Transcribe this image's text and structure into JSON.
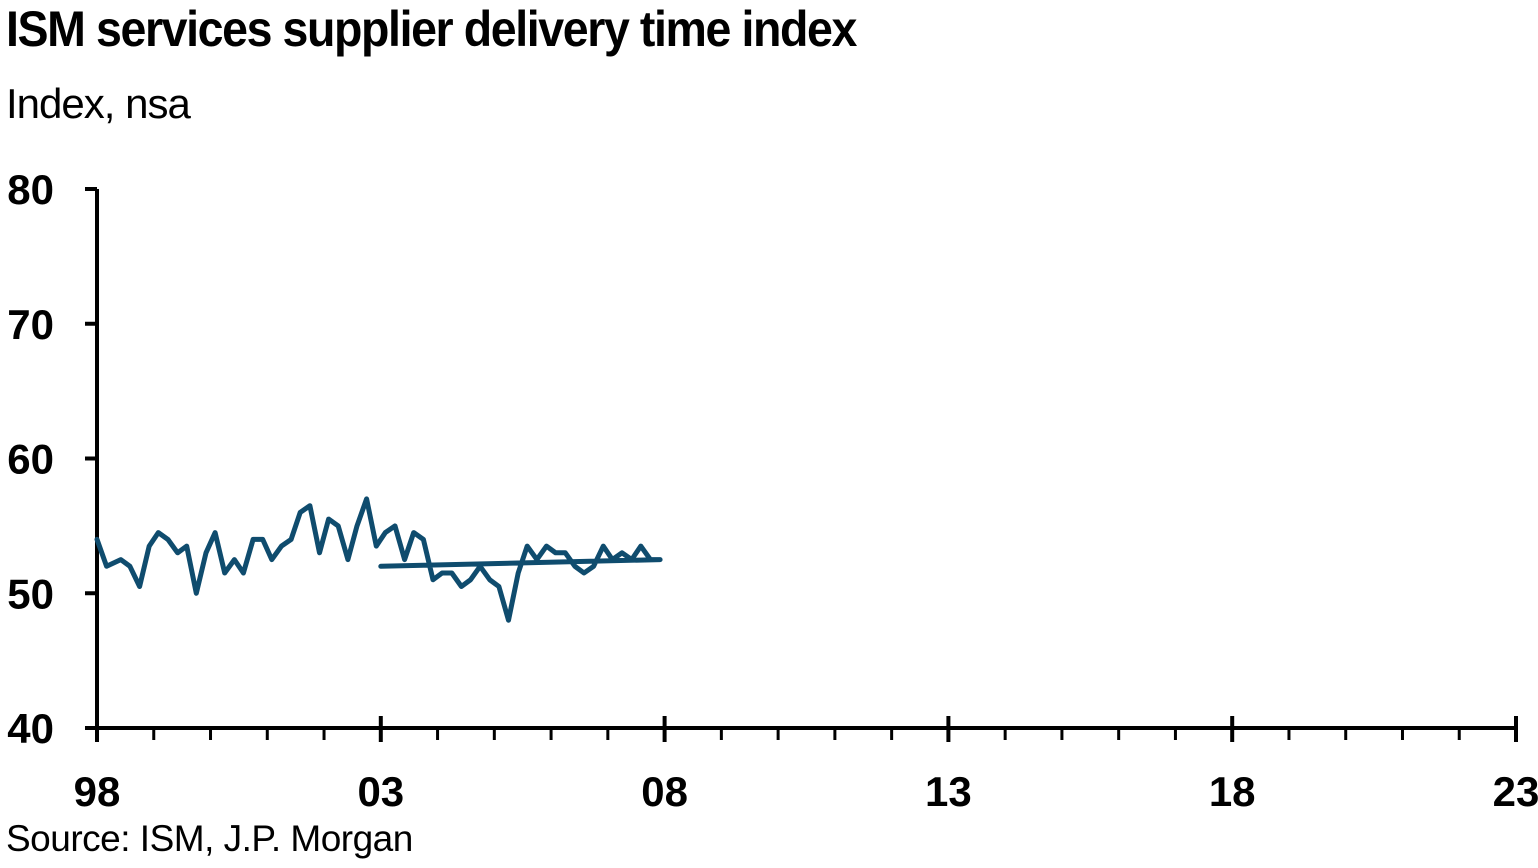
{
  "chart_data": {
    "type": "line",
    "title": "ISM services supplier delivery time index",
    "subtitle": "Index, nsa",
    "source": "Source: ISM, J.P. Morgan",
    "line_color": "#0f4c6e",
    "x_ticks": [
      {
        "year": 1998,
        "label": "98"
      },
      {
        "year": 2003,
        "label": "03"
      },
      {
        "year": 2008,
        "label": "08"
      },
      {
        "year": 2013,
        "label": "13"
      },
      {
        "year": 2018,
        "label": "18"
      },
      {
        "year": 2023,
        "label": "23"
      }
    ],
    "xlim": [
      1998,
      2023
    ],
    "y_ticks": [
      40,
      50,
      60,
      70,
      80
    ],
    "ylim": [
      40,
      80
    ],
    "grid": false,
    "series": [
      {
        "values": [
          [
            1998.0,
            54.0
          ],
          [
            1998.17,
            52.0
          ],
          [
            1998.42,
            52.5
          ],
          [
            1998.58,
            52.0
          ],
          [
            1998.75,
            50.5
          ],
          [
            1998.92,
            53.5
          ],
          [
            1999.08,
            54.5
          ],
          [
            1999.25,
            54.0
          ],
          [
            1999.42,
            53.0
          ],
          [
            1999.58,
            53.5
          ],
          [
            1999.75,
            50.0
          ],
          [
            1999.92,
            53.0
          ],
          [
            2000.08,
            54.5
          ],
          [
            2000.25,
            51.5
          ],
          [
            2000.42,
            52.5
          ],
          [
            2000.58,
            51.5
          ],
          [
            2000.75,
            54.0
          ],
          [
            2000.92,
            54.0
          ],
          [
            2001.08,
            52.5
          ],
          [
            2001.25,
            53.5
          ],
          [
            2001.42,
            54.0
          ],
          [
            2001.58,
            56.0
          ],
          [
            2001.75,
            56.5
          ],
          [
            2001.92,
            53.0
          ],
          [
            2002.08,
            55.5
          ],
          [
            2002.25,
            55.0
          ],
          [
            2002.42,
            52.5
          ],
          [
            2002.58,
            55.0
          ],
          [
            2002.75,
            57.0
          ],
          [
            2002.92,
            53.5
          ],
          [
            2003.08,
            54.5
          ],
          [
            2003.25,
            55.0
          ],
          [
            2003.42,
            52.5
          ],
          [
            2003.58,
            54.5
          ],
          [
            2003.75,
            54.0
          ],
          [
            2003.92,
            51.0
          ],
          [
            2004.08,
            51.5
          ],
          [
            2004.25,
            51.5
          ],
          [
            2004.42,
            50.5
          ],
          [
            2004.58,
            51.0
          ],
          [
            2004.75,
            52.0
          ],
          [
            2004.92,
            51.0
          ],
          [
            2005.08,
            50.5
          ],
          [
            2005.25,
            48.0
          ],
          [
            2005.42,
            51.5
          ],
          [
            2005.58,
            53.5
          ],
          [
            2005.75,
            52.5
          ],
          [
            2005.92,
            53.5
          ],
          [
            2006.08,
            53.0
          ],
          [
            2006.25,
            53.0
          ],
          [
            2006.42,
            52.0
          ],
          [
            2006.58,
            51.5
          ],
          [
            2006.75,
            52.0
          ],
          [
            2006.92,
            53.5
          ],
          [
            2007.08,
            52.5
          ],
          [
            2007.25,
            53.0
          ],
          [
            2007.42,
            52.5
          ],
          [
            2007.58,
            53.5
          ],
          [
            2007.75,
            52.5
          ],
          [
            2007.92,
            52.5
          ],
          [
            2003.0,
            52.0
          ]
        ]
      }
    ]
  }
}
